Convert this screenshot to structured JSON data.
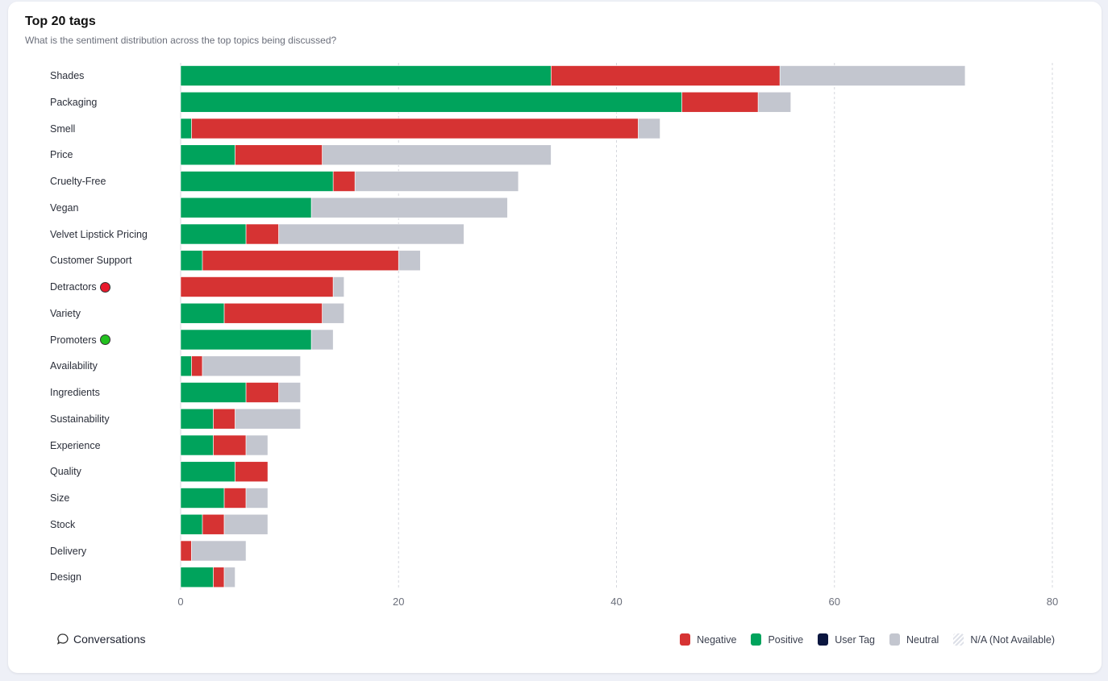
{
  "card": {
    "title": "Top 20 tags",
    "subtitle": "What is the sentiment distribution across the top topics being discussed?"
  },
  "footer": {
    "conversations_label": "Conversations",
    "conversations_icon": "speech-bubble-icon"
  },
  "legend": [
    {
      "label": "Negative",
      "color": "#d63333"
    },
    {
      "label": "Positive",
      "color": "#00a35c"
    },
    {
      "label": "User Tag",
      "color": "#0b1640"
    },
    {
      "label": "Neutral",
      "color": "#c3c6cf"
    },
    {
      "label": "N/A (Not Available)",
      "color": "hatched"
    }
  ],
  "chart_data": {
    "type": "bar",
    "orientation": "horizontal",
    "stacked": true,
    "title": "Top 20 tags",
    "subtitle": "What is the sentiment distribution across the top topics being discussed?",
    "categories": [
      "Shades",
      "Packaging",
      "Smell",
      "Price",
      "Cruelty-Free",
      "Vegan",
      "Velvet Lipstick Pricing",
      "Customer Support",
      "Detractors",
      "Variety",
      "Promoters",
      "Availability",
      "Ingredients",
      "Sustainability",
      "Experience",
      "Quality",
      "Size",
      "Stock",
      "Delivery",
      "Design"
    ],
    "category_markers": {
      "Detractors": "#e8192c",
      "Promoters": "#22c11f"
    },
    "series": [
      {
        "name": "Positive",
        "color": "#00a35c",
        "values": [
          34,
          46,
          1,
          5,
          14,
          12,
          6,
          2,
          0,
          4,
          12,
          1,
          6,
          3,
          3,
          5,
          4,
          2,
          0,
          3
        ]
      },
      {
        "name": "Negative",
        "color": "#d63333",
        "values": [
          21,
          7,
          41,
          8,
          2,
          0,
          3,
          18,
          14,
          9,
          0,
          1,
          3,
          2,
          3,
          3,
          2,
          2,
          1,
          1
        ]
      },
      {
        "name": "Neutral",
        "color": "#c3c6cf",
        "values": [
          17,
          3,
          2,
          21,
          15,
          18,
          17,
          2,
          1,
          2,
          2,
          9,
          2,
          6,
          2,
          0,
          2,
          4,
          5,
          1
        ]
      }
    ],
    "xlim": [
      0,
      80
    ],
    "xticks": [
      "0",
      "20",
      "40",
      "60",
      "80"
    ],
    "grid": "vertical dashed",
    "legend_position": "bottom-right"
  }
}
